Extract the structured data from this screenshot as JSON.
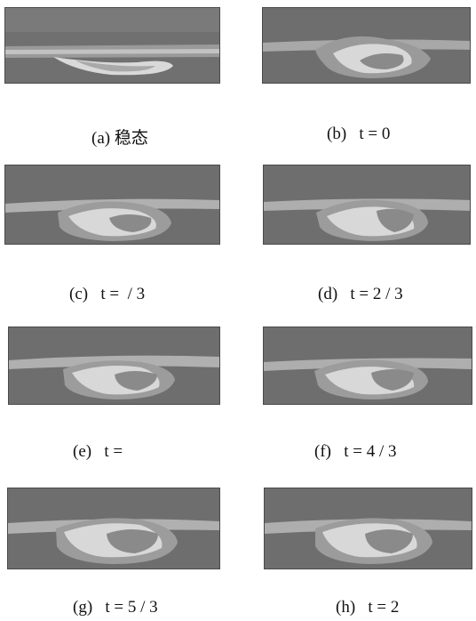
{
  "figure": {
    "panels": [
      {
        "id": "a",
        "caption": "(a) 稳态"
      },
      {
        "id": "b",
        "caption": "(b)   t = 0"
      },
      {
        "id": "c",
        "caption": "(c)   t =  / 3"
      },
      {
        "id": "d",
        "caption": "(d)   t = 2 / 3"
      },
      {
        "id": "e",
        "caption": "(e)   t ="
      },
      {
        "id": "f",
        "caption": "(f)   t = 4 / 3"
      },
      {
        "id": "g",
        "caption": "(g)   t = 5 / 3"
      },
      {
        "id": "h",
        "caption": "(h)   t = 2"
      }
    ]
  },
  "colors": {
    "dark": "#6e6e6e",
    "mid": "#8c8c8c",
    "light": "#b4b4b4",
    "pale": "#dcdcdc",
    "border": "#4a4a4a"
  }
}
